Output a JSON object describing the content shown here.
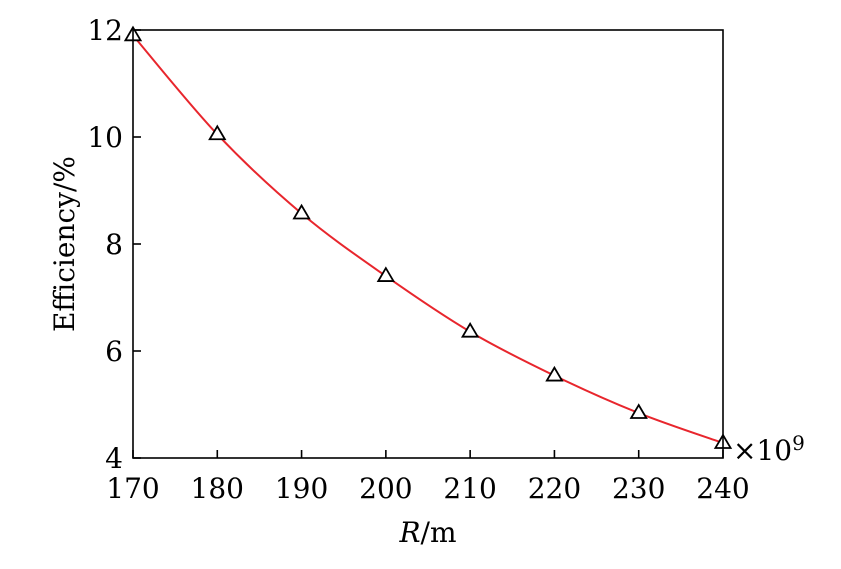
{
  "chart_data": {
    "type": "line",
    "xlabel": {
      "var": "R",
      "unit": "/m"
    },
    "ylabel": "Efficiency/%",
    "x_multiplier": {
      "symbol": "×10",
      "exp": "9"
    },
    "xlim": [
      170,
      240
    ],
    "ylim": [
      4,
      12
    ],
    "xticks": [
      "170",
      "180",
      "190",
      "200",
      "210",
      "220",
      "230",
      "240"
    ],
    "yticks": [
      "4",
      "6",
      "8",
      "10",
      "12"
    ],
    "grid": false,
    "series": [
      {
        "color": "#e8262d",
        "marker": "triangle",
        "x": [
          170,
          180,
          190,
          200,
          210,
          220,
          230,
          240
        ],
        "y": [
          11.9,
          10.05,
          8.57,
          7.4,
          6.36,
          5.54,
          4.84,
          4.28
        ]
      }
    ]
  }
}
